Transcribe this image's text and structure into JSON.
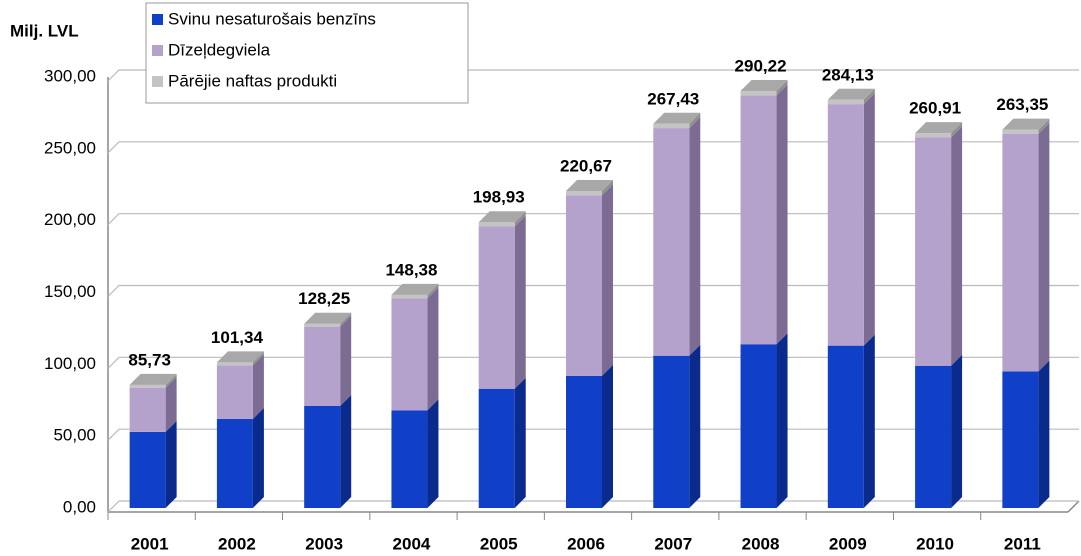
{
  "chart_data": {
    "type": "bar3d_stacked",
    "y_label": "Milj. LVL",
    "categories": [
      "2001",
      "2002",
      "2003",
      "2004",
      "2005",
      "2006",
      "2007",
      "2008",
      "2009",
      "2010",
      "2011"
    ],
    "series": [
      {
        "name": "Svinu nesaturošais benzīns",
        "color": "#1040c8",
        "side": "#0a2a8c",
        "values": [
          53,
          62,
          71,
          68,
          83,
          92,
          106,
          114,
          113,
          99,
          95
        ]
      },
      {
        "name": "Dīzeļdegviela",
        "color": "#b4a2cc",
        "side": "#7c6c94",
        "values": [
          30.73,
          37.34,
          55.25,
          77.88,
          112.93,
          125.67,
          158.43,
          173.22,
          168.13,
          158.91,
          165.35
        ]
      },
      {
        "name": "Pārējie naftas produkti",
        "color": "#c4c4c4",
        "side": "#909090",
        "values": [
          2,
          2,
          2,
          2.5,
          3,
          3,
          3,
          3,
          3,
          3,
          3
        ]
      }
    ],
    "totals": [
      85.73,
      101.34,
      128.25,
      148.38,
      198.93,
      220.67,
      267.43,
      290.22,
      284.13,
      260.91,
      263.35
    ],
    "total_labels": [
      "85,73",
      "101,34",
      "128,25",
      "148,38",
      "198,93",
      "220,67",
      "267,43",
      "290,22",
      "284,13",
      "260,91",
      "263,35"
    ],
    "ylim": [
      0,
      300
    ],
    "yticks": [
      {
        "value": 0,
        "label": "0,00"
      },
      {
        "value": 50,
        "label": "50,00"
      },
      {
        "value": 100,
        "label": "100,00"
      },
      {
        "value": 150,
        "label": "150,00"
      },
      {
        "value": 200,
        "label": "200,00"
      },
      {
        "value": 250,
        "label": "250,00"
      },
      {
        "value": 300,
        "label": "300,00"
      }
    ],
    "grid": true,
    "legend": "top-left"
  }
}
